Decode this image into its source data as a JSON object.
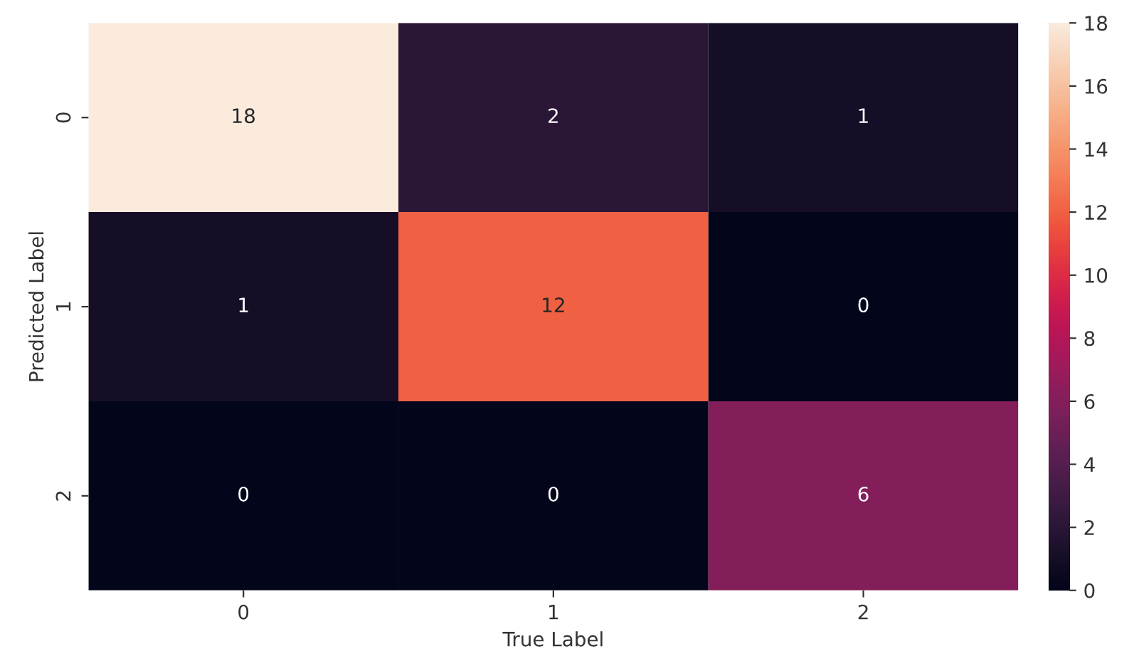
{
  "chart_data": {
    "type": "heatmap",
    "xlabel": "True Label",
    "ylabel": "Predicted Label",
    "categories": [
      "0",
      "1",
      "2"
    ],
    "y_categories": [
      "0",
      "1",
      "2"
    ],
    "cells": [
      [
        18,
        2,
        1
      ],
      [
        1,
        12,
        0
      ],
      [
        0,
        0,
        6
      ]
    ],
    "clim": [
      0,
      18
    ],
    "cticks": [
      0,
      2,
      4,
      6,
      8,
      10,
      12,
      14,
      16,
      18
    ],
    "data_labels": true,
    "grid": false,
    "legend": false
  }
}
